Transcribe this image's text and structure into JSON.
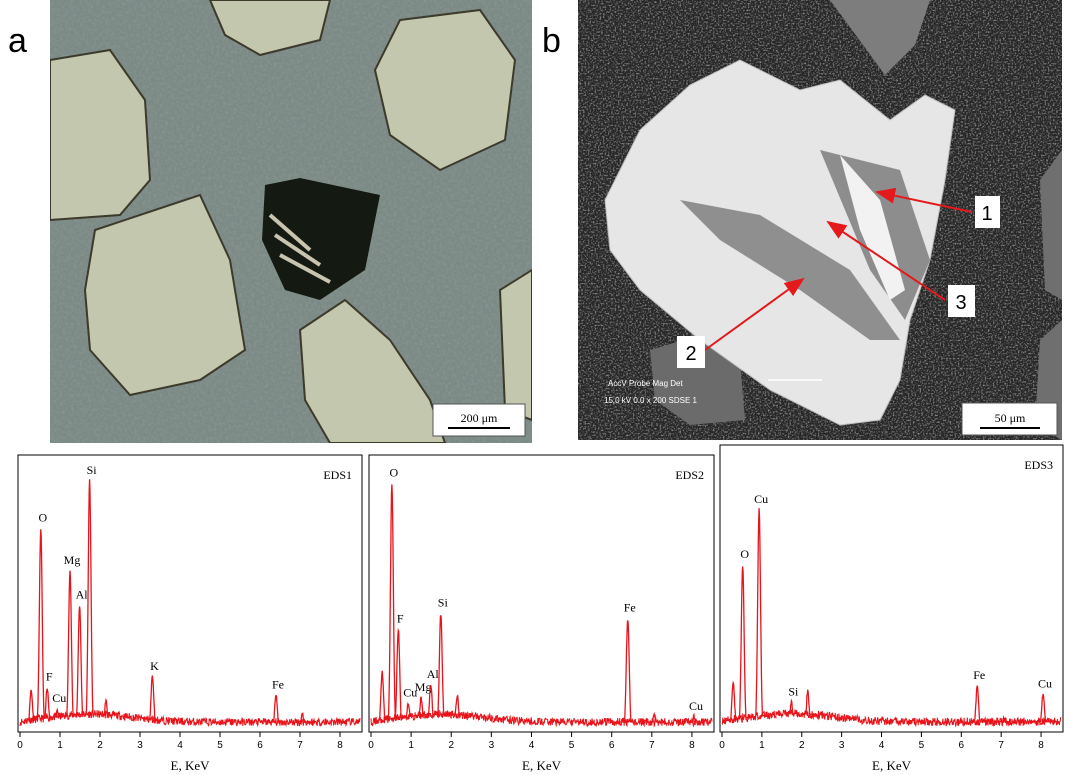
{
  "panels": [
    {
      "label": "a",
      "scale_bar": "200 μm"
    },
    {
      "label": "b",
      "scale_bar": "50 μm",
      "sem_header": "AccV    Probe    Mag     Det",
      "sem_values": "15.0 kV   0.0    x 200    SDSE   1",
      "markers": [
        "1",
        "2",
        "3"
      ]
    }
  ],
  "chart_data": [
    {
      "type": "spectrum",
      "title": "EDS1",
      "x_label": "E, KeV",
      "xlim": [
        0,
        8.5
      ],
      "xticks": [
        0,
        1,
        2,
        3,
        4,
        5,
        6,
        7,
        8
      ],
      "ylim": [
        0,
        100
      ],
      "color": "#e8141b",
      "peaks": [
        {
          "label": null,
          "energy": 0.28,
          "intensity": 15
        },
        {
          "label": "O",
          "energy": 0.52,
          "intensity": 76
        },
        {
          "label": "F",
          "energy": 0.68,
          "intensity": 16
        },
        {
          "label": "Cu",
          "energy": 0.93,
          "intensity": 8
        },
        {
          "label": "Mg",
          "energy": 1.25,
          "intensity": 60
        },
        {
          "label": "Al",
          "energy": 1.49,
          "intensity": 47
        },
        {
          "label": "Si",
          "energy": 1.74,
          "intensity": 94
        },
        {
          "label": null,
          "energy": 2.15,
          "intensity": 11
        },
        {
          "label": "K",
          "energy": 3.31,
          "intensity": 20
        },
        {
          "label": "Fe",
          "energy": 6.4,
          "intensity": 13
        },
        {
          "label": null,
          "energy": 7.06,
          "intensity": 6
        }
      ]
    },
    {
      "type": "spectrum",
      "title": "EDS2",
      "x_label": "E, KeV",
      "xlim": [
        0,
        8.5
      ],
      "xticks": [
        0,
        1,
        2,
        3,
        4,
        5,
        6,
        7,
        8
      ],
      "ylim": [
        0,
        100
      ],
      "color": "#e8141b",
      "peaks": [
        {
          "label": null,
          "energy": 0.28,
          "intensity": 22
        },
        {
          "label": "O",
          "energy": 0.52,
          "intensity": 93
        },
        {
          "label": "F",
          "energy": 0.68,
          "intensity": 38
        },
        {
          "label": "Cu",
          "energy": 0.93,
          "intensity": 10
        },
        {
          "label": "Mg",
          "energy": 1.25,
          "intensity": 12
        },
        {
          "label": "Al",
          "energy": 1.49,
          "intensity": 17
        },
        {
          "label": "Si",
          "energy": 1.74,
          "intensity": 44
        },
        {
          "label": null,
          "energy": 2.15,
          "intensity": 13
        },
        {
          "label": "Fe",
          "energy": 6.4,
          "intensity": 42
        },
        {
          "label": null,
          "energy": 7.06,
          "intensity": 6
        },
        {
          "label": "Cu",
          "energy": 8.05,
          "intensity": 5
        }
      ]
    },
    {
      "type": "spectrum",
      "title": "EDS3",
      "x_label": "E, KeV",
      "xlim": [
        0,
        8.5
      ],
      "xticks": [
        0,
        1,
        2,
        3,
        4,
        5,
        6,
        7,
        8
      ],
      "ylim": [
        0,
        100
      ],
      "color": "#e8141b",
      "peaks": [
        {
          "label": null,
          "energy": 0.28,
          "intensity": 17
        },
        {
          "label": "O",
          "energy": 0.52,
          "intensity": 60
        },
        {
          "label": "Cu",
          "energy": 0.93,
          "intensity": 80
        },
        {
          "label": "Si",
          "energy": 1.74,
          "intensity": 10
        },
        {
          "label": null,
          "energy": 2.15,
          "intensity": 14
        },
        {
          "label": "Fe",
          "energy": 6.4,
          "intensity": 16
        },
        {
          "label": null,
          "energy": 7.06,
          "intensity": 4
        },
        {
          "label": "Cu",
          "energy": 8.05,
          "intensity": 13
        }
      ]
    }
  ]
}
